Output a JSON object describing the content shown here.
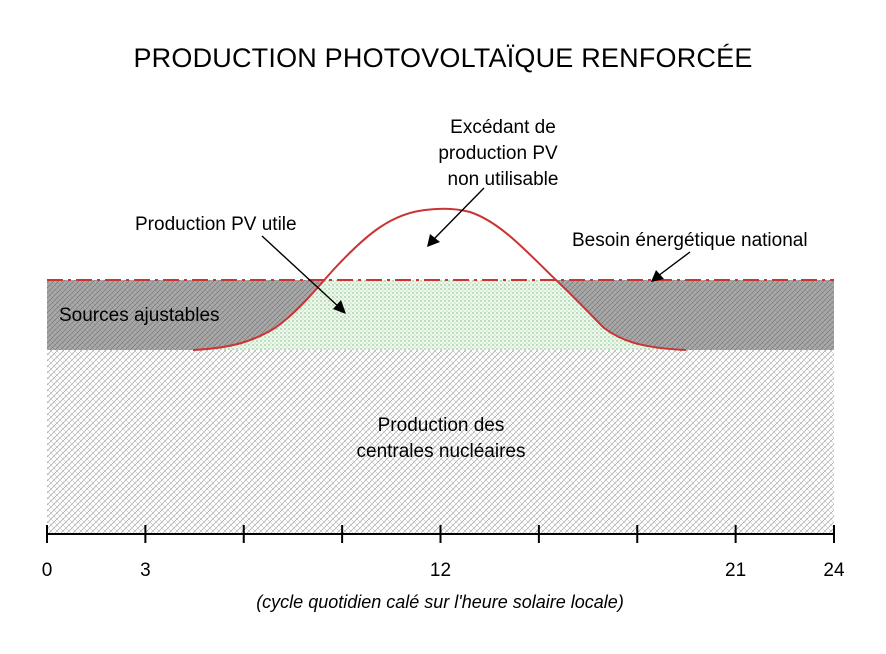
{
  "title": "PRODUCTION PHOTOVOLTAÏQUE RENFORCÉE",
  "labels": {
    "excedant": [
      "Excédant de",
      "production PV",
      "non utilisable"
    ],
    "pv_utile": "Production PV utile",
    "besoin": "Besoin énergétique national",
    "ajustables": "Sources ajustables",
    "nucleaire": [
      "Production des",
      "centrales nucléaires"
    ]
  },
  "axis": {
    "ticks": [
      0,
      3,
      6,
      9,
      12,
      15,
      18,
      21,
      24
    ],
    "tick_labels": [
      "0",
      "3",
      "",
      "",
      "12",
      "",
      "",
      "21",
      "24"
    ],
    "caption": "(cycle quotidien calé sur l'heure solaire locale)"
  },
  "colors": {
    "pv_curve": "#cc3333",
    "demand_line": "#cc3333",
    "adjustable_fill": "#b3b3b3",
    "nuclear_fill": "#ffffff",
    "pv_fill": "#d9f2d9"
  }
}
